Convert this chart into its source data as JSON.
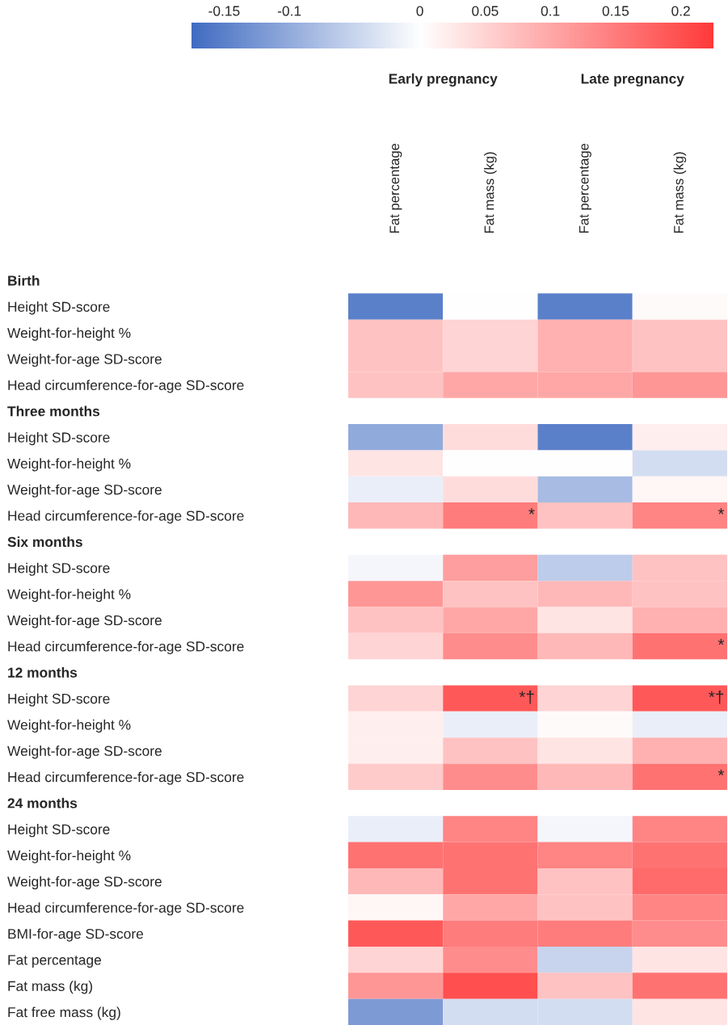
{
  "chart_data": {
    "type": "heatmap",
    "categories": [
      "Fat percentage",
      "Fat mass (kg)",
      "Fat percentage",
      "Fat mass (kg)"
    ],
    "y_categories": [
      "Birth",
      "Height SD-score",
      "Weight-for-height %",
      "Weight-for-age SD-score",
      "Head circumference-for-age SD-score",
      "Three months",
      "Height SD-score",
      "Weight-for-height %",
      "Weight-for-age SD-score",
      "Head circumference-for-age SD-score",
      "Six months",
      "Height SD-score",
      "Weight-for-height %",
      "Weight-for-age SD-score",
      "Head circumference-for-age SD-score",
      "12 months",
      "Height SD-score",
      "Weight-for-height %",
      "Weight-for-age SD-score",
      "Head circumference-for-age SD-score",
      "24 months",
      "Height SD-score",
      "Weight-for-height %",
      "Weight-for-age SD-score",
      "Head circumference-for-age SD-score",
      "BMI-for-age SD-score",
      "Fat percentage",
      "Fat mass (kg)",
      "Fat free mass (kg)"
    ],
    "cells": [
      [
        null,
        null,
        null,
        null
      ],
      [
        -0.15,
        0,
        -0.15,
        0.005
      ],
      [
        0.07,
        0.05,
        0.09,
        0.07
      ],
      [
        0.07,
        0.05,
        0.09,
        0.07
      ],
      [
        0.07,
        0.1,
        0.1,
        0.12
      ],
      [
        null,
        null,
        null,
        null
      ],
      [
        -0.1,
        0.04,
        -0.15,
        0.02
      ],
      [
        0.03,
        0,
        0,
        -0.04
      ],
      [
        -0.02,
        0.04,
        -0.08,
        0.01
      ],
      [
        0.08,
        0.15,
        0.07,
        0.14
      ],
      [
        null,
        null,
        null,
        null
      ],
      [
        -0.01,
        0.11,
        -0.06,
        0.07
      ],
      [
        0.12,
        0.07,
        0.08,
        0.07
      ],
      [
        0.07,
        0.1,
        0.03,
        0.09
      ],
      [
        0.05,
        0.13,
        0.08,
        0.16
      ],
      [
        null,
        null,
        null,
        null
      ],
      [
        0.05,
        0.19,
        0.05,
        0.19
      ],
      [
        0.02,
        -0.02,
        0.005,
        -0.02
      ],
      [
        0.02,
        0.07,
        0.03,
        0.09
      ],
      [
        0.06,
        0.13,
        0.08,
        0.16
      ],
      [
        null,
        null,
        null,
        null
      ],
      [
        -0.02,
        0.14,
        -0.01,
        0.14
      ],
      [
        0.16,
        0.16,
        0.14,
        0.16
      ],
      [
        0.08,
        0.16,
        0.07,
        0.17
      ],
      [
        0.01,
        0.1,
        0.07,
        0.14
      ],
      [
        0.19,
        0.15,
        0.15,
        0.13
      ],
      [
        0.05,
        0.13,
        -0.05,
        0.03
      ],
      [
        0.12,
        0.2,
        0.07,
        0.16
      ],
      [
        -0.12,
        -0.04,
        -0.04,
        0.03
      ]
    ],
    "cell_labels": [
      [
        null,
        null,
        null,
        null
      ],
      [
        null,
        null,
        null,
        null
      ],
      [
        null,
        null,
        null,
        null
      ],
      [
        null,
        null,
        null,
        null
      ],
      [
        null,
        null,
        null,
        null
      ],
      [
        null,
        null,
        null,
        null
      ],
      [
        null,
        null,
        null,
        null
      ],
      [
        null,
        null,
        null,
        null
      ],
      [
        null,
        null,
        null,
        null
      ],
      [
        null,
        "*",
        null,
        "*"
      ],
      [
        null,
        null,
        null,
        null
      ],
      [
        null,
        null,
        null,
        null
      ],
      [
        null,
        null,
        null,
        null
      ],
      [
        null,
        null,
        null,
        null
      ],
      [
        null,
        null,
        null,
        "*"
      ],
      [
        null,
        null,
        null,
        null
      ],
      [
        null,
        "*†",
        null,
        "*†"
      ],
      [
        null,
        null,
        null,
        null
      ],
      [
        null,
        null,
        null,
        null
      ],
      [
        null,
        null,
        null,
        "*"
      ],
      [
        null,
        null,
        null,
        null
      ],
      [
        null,
        null,
        null,
        null
      ],
      [
        null,
        null,
        null,
        null
      ],
      [
        null,
        null,
        null,
        null
      ],
      [
        null,
        null,
        null,
        null
      ],
      [
        null,
        null,
        null,
        null
      ],
      [
        null,
        null,
        null,
        null
      ],
      [
        null,
        null,
        null,
        null
      ],
      [
        null,
        null,
        null,
        null
      ]
    ],
    "annotations": [
      "Early pregnancy",
      "Late pregnancy"
    ],
    "clim": [
      -0.175,
      0.225
    ],
    "cticks": [
      -0.15,
      -0.1,
      0,
      0.05,
      0.1,
      0.15,
      0.2
    ]
  }
}
